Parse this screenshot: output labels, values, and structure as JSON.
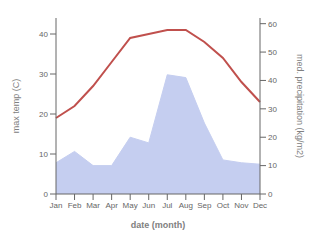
{
  "chart_data": {
    "type": "line",
    "categories": [
      "Jan",
      "Feb",
      "Mar",
      "Apr",
      "May",
      "Jun",
      "Jul",
      "Aug",
      "Sep",
      "Oct",
      "Nov",
      "Dec"
    ],
    "series": [
      {
        "type": "area",
        "axis": "y2",
        "color": "#c5cef0",
        "values": [
          11,
          15,
          10,
          10,
          20,
          18,
          42,
          41,
          25,
          12,
          11,
          10.5
        ]
      },
      {
        "type": "line",
        "color": "#c0504d",
        "values": [
          19,
          22,
          27,
          33,
          39,
          40,
          41,
          41,
          38,
          34,
          28,
          23
        ]
      }
    ],
    "x_label": "date (month)",
    "y_label": "max temp (C)",
    "y2_label": "med. precipitation (kg/m2)",
    "ylim": [
      0,
      44
    ],
    "yticks": [
      0,
      10,
      20,
      30,
      40
    ],
    "y2lim": [
      0,
      62
    ],
    "y2ticks": [
      0,
      10,
      20,
      30,
      40,
      50,
      60
    ],
    "grid": false
  }
}
